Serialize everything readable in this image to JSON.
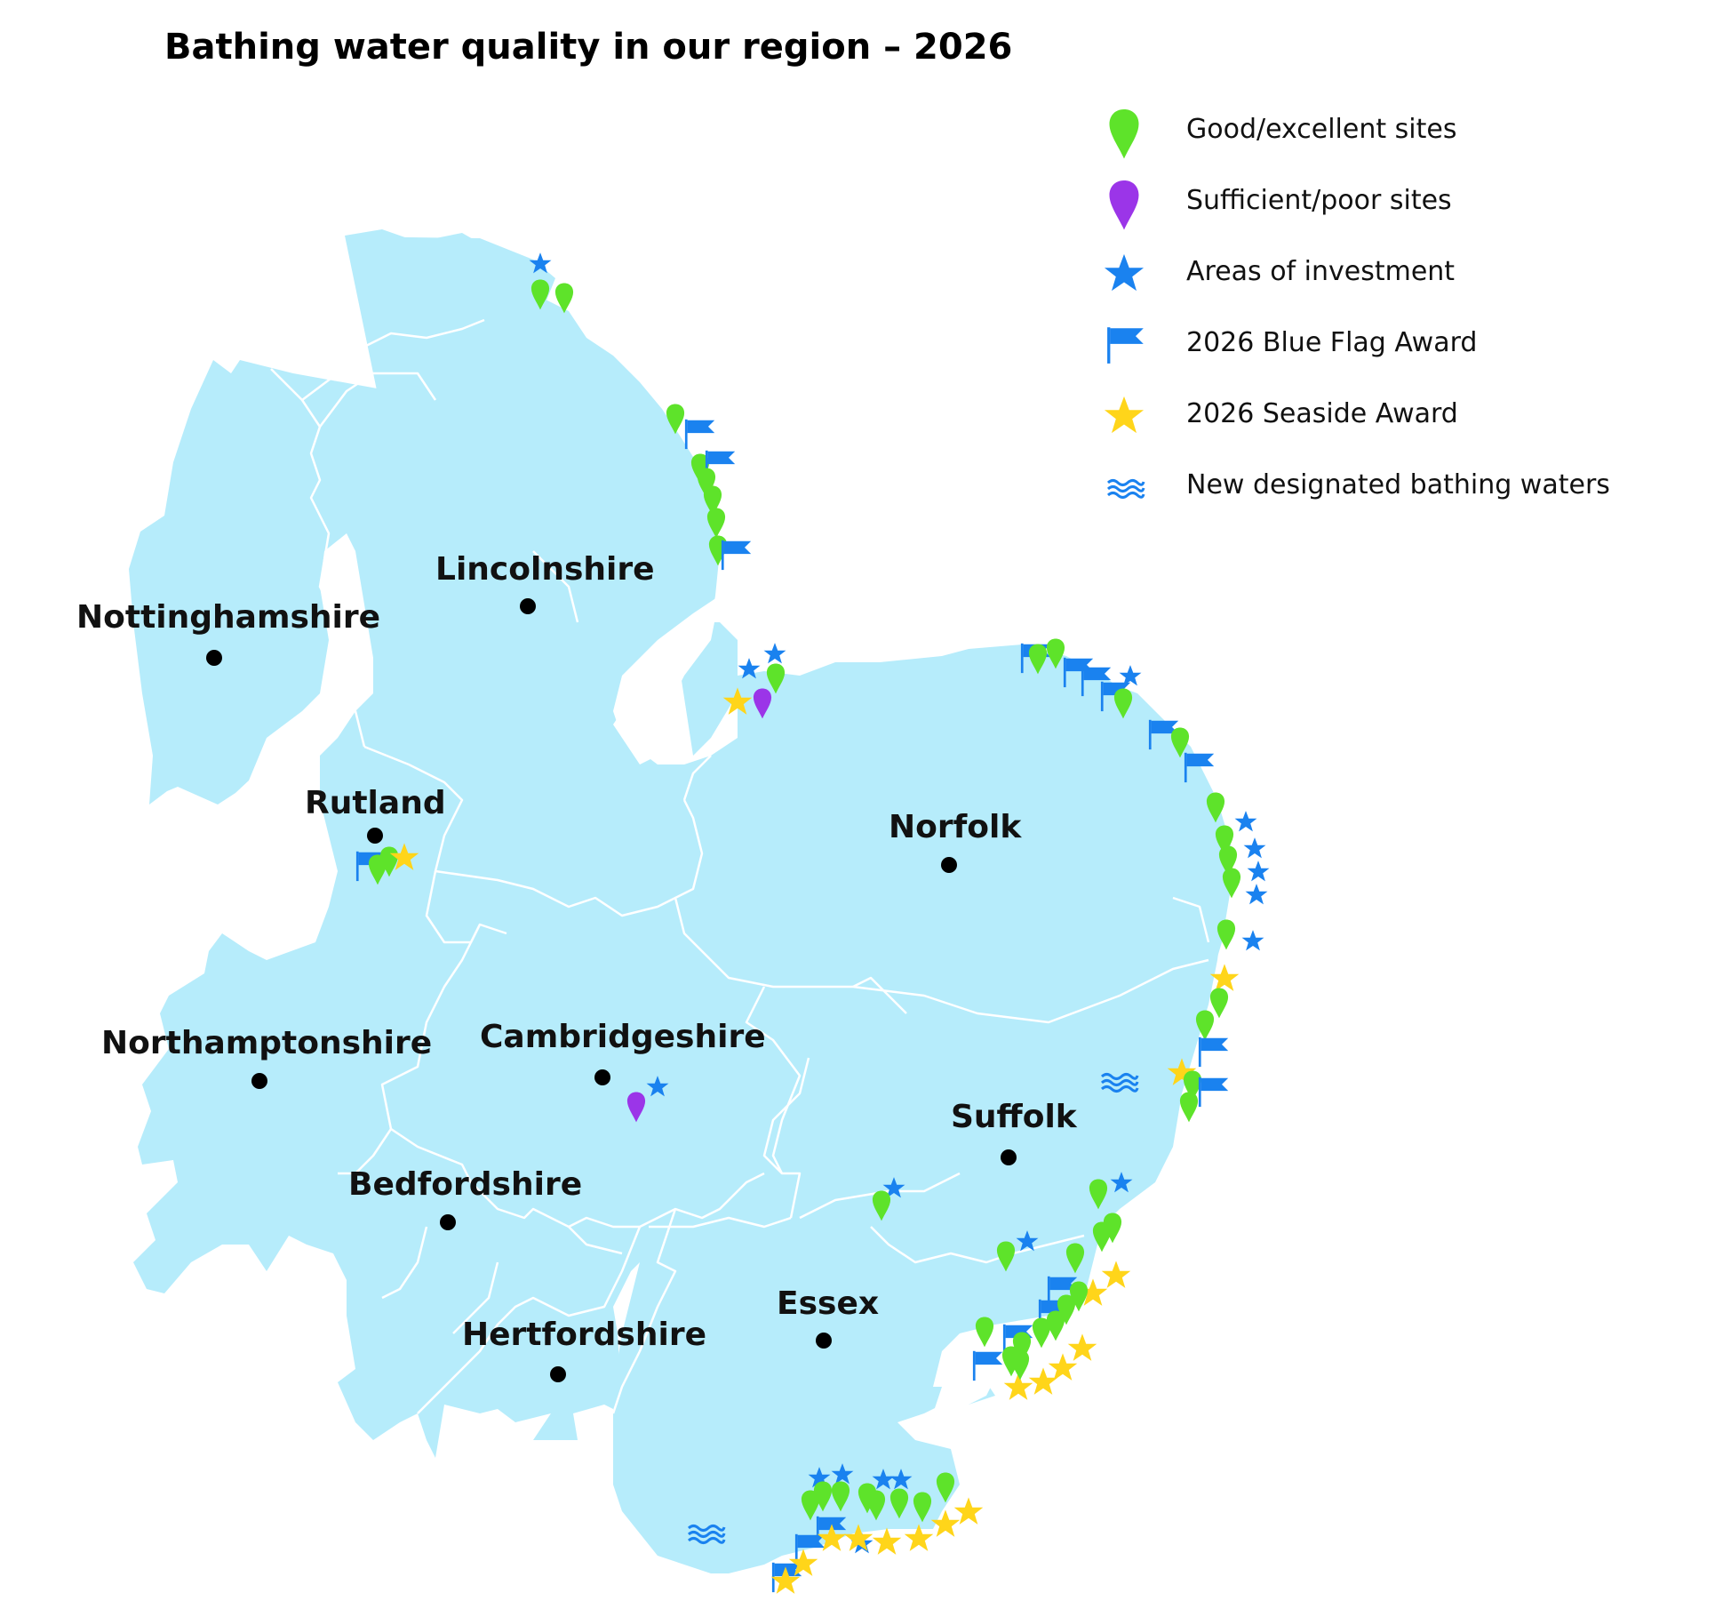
{
  "title": "Bathing water quality in our region – 2026",
  "colors": {
    "land": "#b6ecfb",
    "border": "#ffffff",
    "good": "#5ee32a",
    "sufficient": "#9b35e8",
    "investment": "#1a82ef",
    "blue_flag": "#1a82ef",
    "seaside": "#ffd51a",
    "new_water": "#1a82ef",
    "county_dot": "#000000"
  },
  "legend": [
    {
      "icon": "green-pin-icon",
      "label": "Good/excellent sites"
    },
    {
      "icon": "purple-pin-icon",
      "label": "Sufficient/poor sites"
    },
    {
      "icon": "blue-star-icon",
      "label": "Areas of investment"
    },
    {
      "icon": "blue-flag-icon",
      "label": "2026 Blue Flag Award"
    },
    {
      "icon": "yellow-star-icon",
      "label": "2026 Seaside Award"
    },
    {
      "icon": "waves-icon",
      "label": "New designated bathing waters"
    }
  ],
  "counties": [
    "Lincolnshire",
    "Nottinghamshire",
    "Rutland",
    "Norfolk",
    "Northamptonshire",
    "Cambridgeshire",
    "Suffolk",
    "Bedfordshire",
    "Hertfordshire",
    "Essex"
  ]
}
